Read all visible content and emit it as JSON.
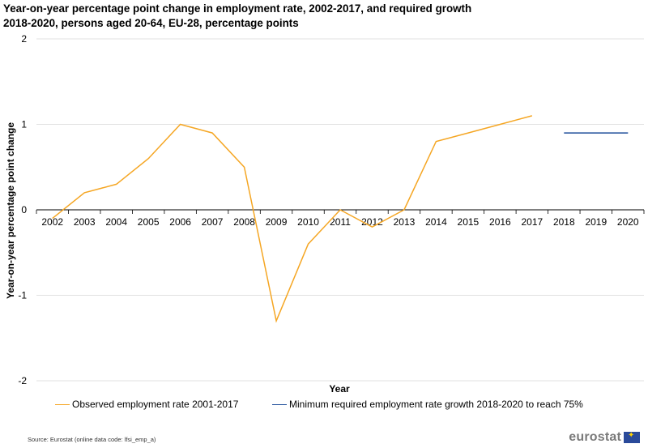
{
  "title": "Year-on-year percentage point change in employment rate, 2002-2017, and required growth 2018-2020, persons aged 20-64, EU-28, percentage points",
  "source": "Source: Eurostat (online data code:  lfsi_emp_a)",
  "logo": {
    "text": "eurostat",
    "icon": "eu-flag-icon"
  },
  "chart_data": {
    "type": "line",
    "title": "Year-on-year percentage point change in employment rate, 2002-2017, and required growth 2018-2020, persons aged 20-64, EU-28, percentage points",
    "xlabel": "Year",
    "ylabel": "Year-on-year percentage point change",
    "categories": [
      "2002",
      "2003",
      "2004",
      "2005",
      "2006",
      "2007",
      "2008",
      "2009",
      "2010",
      "2011",
      "2012",
      "2013",
      "2014",
      "2015",
      "2016",
      "2017",
      "2018",
      "2019",
      "2020"
    ],
    "yticks": [
      "2",
      "1",
      "0",
      "-1",
      "-2"
    ],
    "ylim": [
      -2,
      2
    ],
    "grid": true,
    "legend_position": "bottom",
    "series": [
      {
        "name": "Observed employment rate  2001-2017",
        "color": "#f5a623",
        "values": [
          -0.1,
          0.2,
          0.3,
          0.6,
          1.0,
          0.9,
          0.5,
          -1.3,
          -0.4,
          0.0,
          -0.2,
          0.0,
          0.8,
          0.9,
          1.0,
          1.1,
          null,
          null,
          null
        ]
      },
      {
        "name": "Minimum required employment rate growth 2018-2020 to reach 75%",
        "color": "#1f4e9a",
        "values": [
          null,
          null,
          null,
          null,
          null,
          null,
          null,
          null,
          null,
          null,
          null,
          null,
          null,
          null,
          null,
          null,
          0.9,
          0.9,
          0.9
        ]
      }
    ]
  }
}
